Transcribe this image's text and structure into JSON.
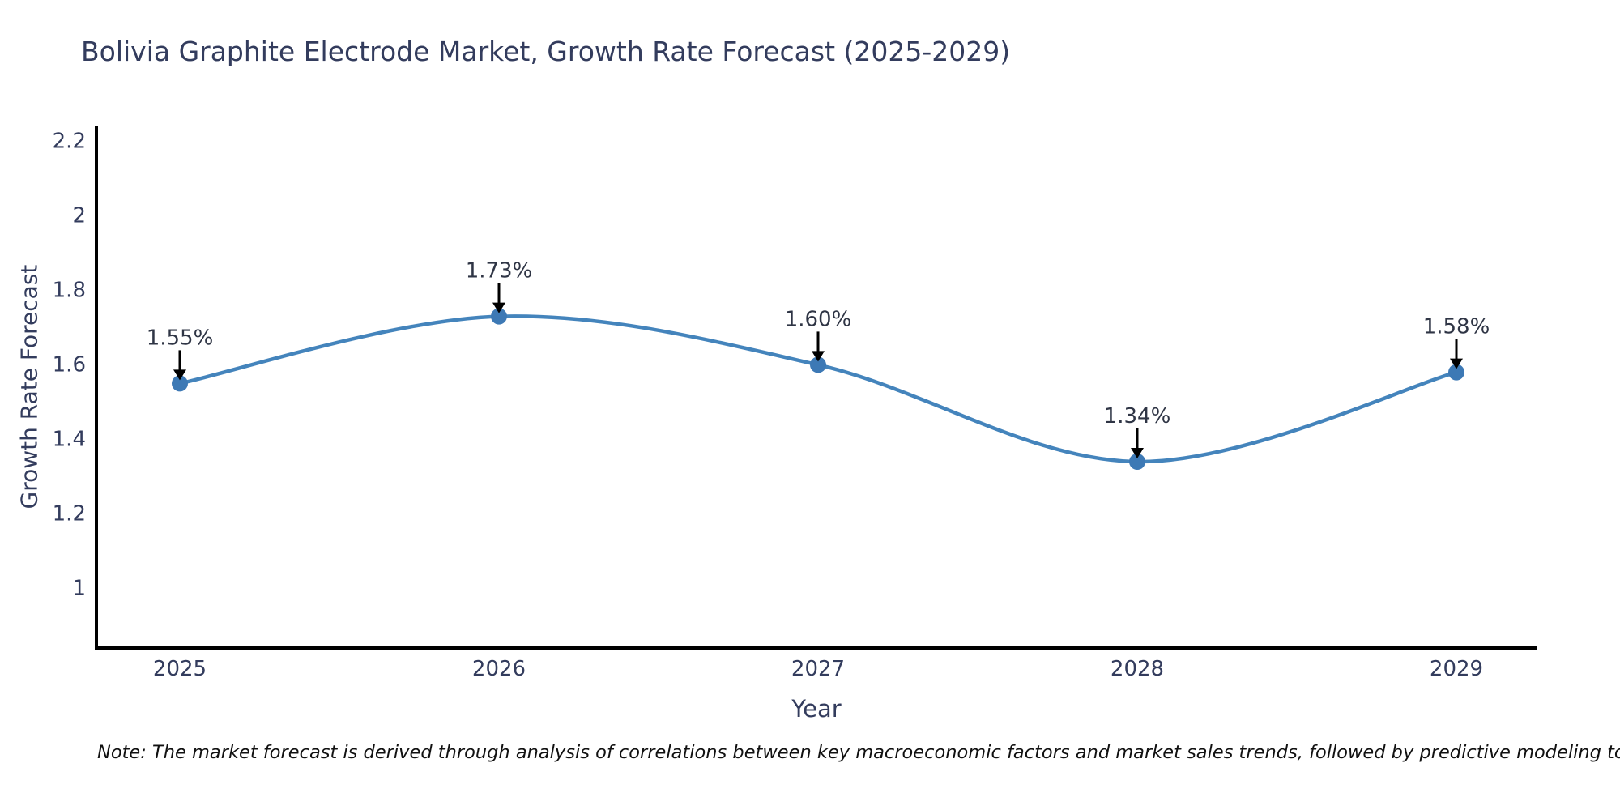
{
  "chart_data": {
    "type": "line",
    "title": "Bolivia Graphite Electrode Market, Growth Rate Forecast (2025-2029)",
    "xlabel": "Year",
    "ylabel": "Growth Rate Forecast",
    "line_shape": "spline",
    "grid": false,
    "legend": "none",
    "x": [
      2025,
      2026,
      2027,
      2028,
      2029
    ],
    "values": [
      1.55,
      1.73,
      1.6,
      1.34,
      1.58
    ],
    "point_labels": [
      "1.55%",
      "1.73%",
      "1.60%",
      "1.34%",
      "1.58%"
    ],
    "x_tick_labels": [
      "2025",
      "2026",
      "2027",
      "2028",
      "2029"
    ],
    "y_ticks": [
      1,
      1.2,
      1.4,
      1.6,
      1.8,
      2,
      2.2
    ],
    "y_tick_labels": [
      "1",
      "1.2",
      "1.4",
      "1.6",
      "1.8",
      "2",
      "2.2"
    ],
    "ylim": [
      0.84,
      2.24
    ],
    "colors": {
      "line": "#4484bc",
      "marker": "#3d79b5",
      "axis": "#000000",
      "text": "#333c5d",
      "annotation_text": "#2f3545",
      "annotation_arrow": "#000000",
      "note_text": "#111111"
    },
    "note": "Note: The market forecast is derived through analysis of correlations between key macroeconomic factors and market sales trends, followed by predictive modeling to project future sales"
  }
}
